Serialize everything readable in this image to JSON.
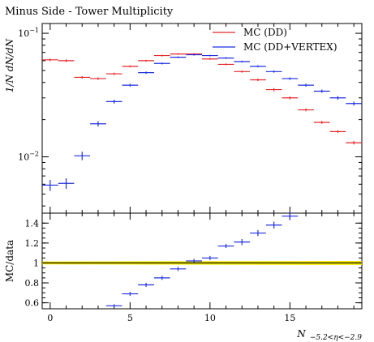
{
  "chart_data": [
    {
      "type": "scatter",
      "title": "Minus Side - Tower Multiplicity",
      "ylabel": "1/N dN/dN",
      "yscale": "log",
      "ylim": [
        0.0035,
        0.12
      ],
      "yticks": [
        {
          "value": 0.01,
          "base": "10",
          "exp": "−2"
        },
        {
          "value": 0.1,
          "base": "10",
          "exp": "−1"
        }
      ],
      "xlim": [
        -0.5,
        19.5
      ],
      "legend_position": "top-right",
      "series": [
        {
          "name": "MC (DD)",
          "color": "#e8262b",
          "x": [
            0,
            1,
            2,
            3,
            4,
            5,
            6,
            7,
            8,
            9,
            10,
            11,
            12,
            13,
            14,
            15,
            16,
            17,
            18,
            19
          ],
          "y": [
            0.061,
            0.06,
            0.044,
            0.043,
            0.047,
            0.054,
            0.06,
            0.066,
            0.068,
            0.068,
            0.062,
            0.056,
            0.049,
            0.042,
            0.035,
            0.03,
            0.024,
            0.019,
            0.016,
            0.013
          ],
          "yerr": [
            0.0015,
            0.0015,
            0.001,
            0.001,
            0.001,
            0.001,
            0.001,
            0.001,
            0.001,
            0.001,
            0.001,
            0.001,
            0.001,
            0.001,
            0.001,
            0.0008,
            0.0006,
            0.0005,
            0.0004,
            0.0004
          ]
        },
        {
          "name": "MC (DD+VERTEX)",
          "color": "#1f2fe3",
          "x": [
            0,
            1,
            2,
            3,
            4,
            5,
            6,
            7,
            8,
            9,
            10,
            11,
            12,
            13,
            14,
            15,
            16,
            17,
            18,
            19
          ],
          "y": [
            0.0059,
            0.0061,
            0.0102,
            0.0185,
            0.028,
            0.038,
            0.048,
            0.057,
            0.064,
            0.067,
            0.066,
            0.063,
            0.059,
            0.054,
            0.049,
            0.043,
            0.038,
            0.034,
            0.03,
            0.027
          ],
          "yerr": [
            0.0006,
            0.0006,
            0.0008,
            0.0009,
            0.001,
            0.001,
            0.001,
            0.001,
            0.001,
            0.001,
            0.001,
            0.001,
            0.001,
            0.001,
            0.001,
            0.001,
            0.001,
            0.001,
            0.001,
            0.001
          ]
        }
      ]
    },
    {
      "type": "scatter",
      "ylabel": "MC/data",
      "xlabel": "N −5.2<η<−2.9",
      "xlabel_main": "N",
      "xlabel_sub": "−5.2<η<−2.9",
      "ylim": [
        0.54,
        1.5
      ],
      "yticks": [
        0.6,
        0.8,
        1,
        1.2,
        1.4
      ],
      "ytick_labels": [
        "0.6",
        "0.8",
        "1",
        "1.2",
        "1.4"
      ],
      "xticks": [
        0,
        5,
        10,
        15
      ],
      "xtick_labels": [
        "0",
        "5",
        "10",
        "15"
      ],
      "xlim": [
        -0.5,
        19.5
      ],
      "reference_line": {
        "value": 1,
        "color": "#000000"
      },
      "uncertainty_band": {
        "color": "#f4ea00",
        "x": [
          -0.5,
          19.5
        ],
        "lower": [
          0.985,
          0.98
        ],
        "upper": [
          1.015,
          1.02
        ]
      },
      "series": [
        {
          "name": "MC (DD+VERTEX)",
          "color": "#1f2fe3",
          "x": [
            4,
            5,
            6,
            7,
            8,
            9,
            10,
            11,
            12,
            13,
            14,
            15
          ],
          "y": [
            0.57,
            0.69,
            0.78,
            0.85,
            0.94,
            1.02,
            1.05,
            1.17,
            1.21,
            1.3,
            1.38,
            1.47
          ],
          "yerr": [
            0.015,
            0.02,
            0.02,
            0.02,
            0.02,
            0.02,
            0.02,
            0.02,
            0.03,
            0.03,
            0.035,
            0.04
          ]
        }
      ]
    }
  ]
}
